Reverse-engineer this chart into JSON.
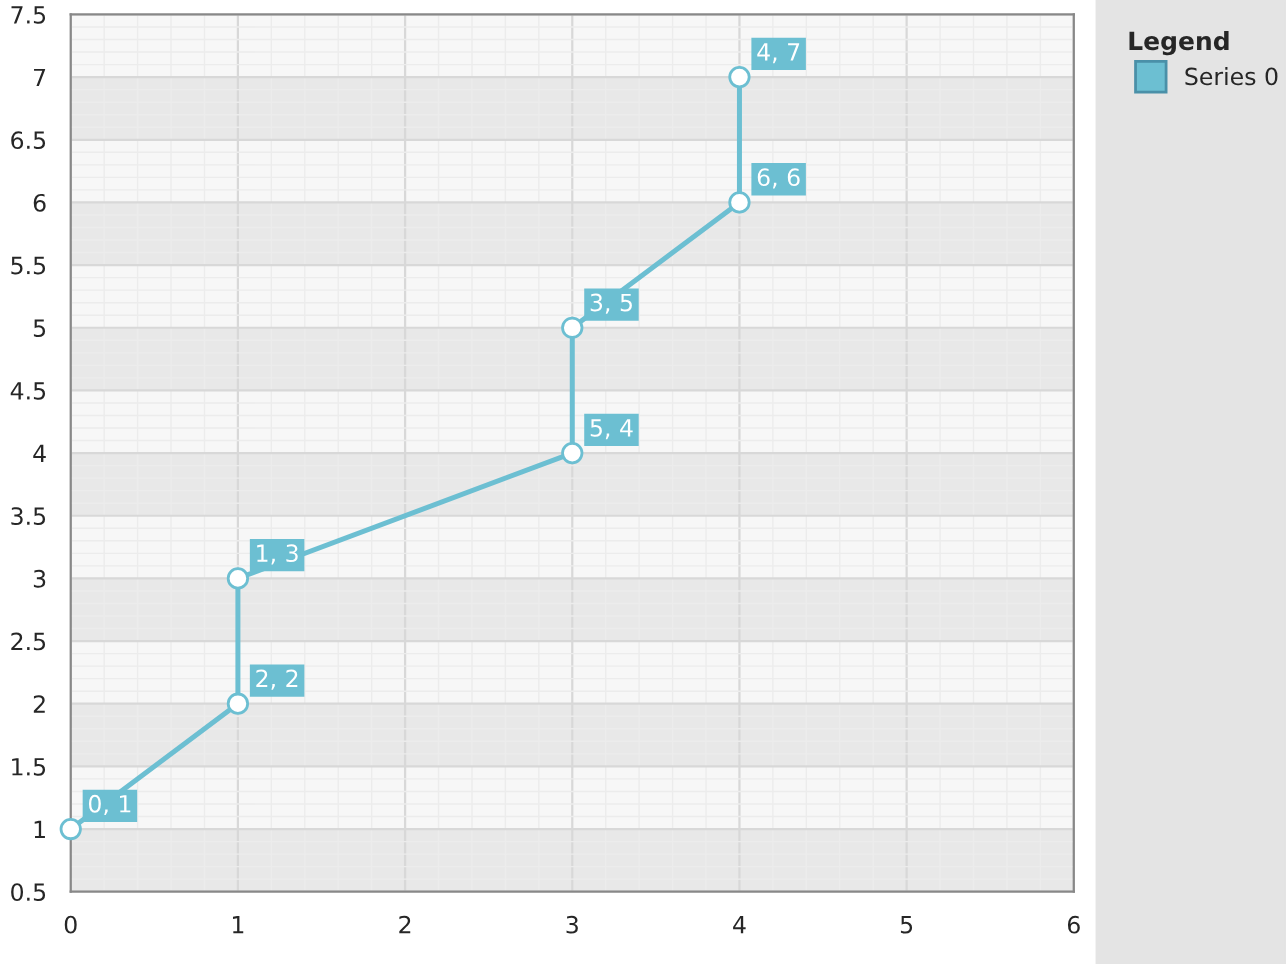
{
  "chart_data": {
    "type": "line",
    "legend_title": "Legend",
    "series": [
      {
        "name": "Series 0",
        "color": "#6cbfd2",
        "x": [
          0,
          1,
          1,
          3,
          3,
          4,
          4
        ],
        "values": [
          1,
          2,
          3,
          4,
          5,
          6,
          7
        ],
        "value_labels": [
          "0, 1",
          "2, 2",
          "1, 3",
          "5, 4",
          "3, 5",
          "6, 6",
          "4, 7"
        ]
      }
    ],
    "xlim": [
      0,
      6
    ],
    "xticks": [
      0,
      1,
      2,
      3,
      4,
      5,
      6
    ],
    "ylim": [
      0.5,
      7.5
    ],
    "yticks": [
      0.5,
      1,
      1.5,
      2,
      2.5,
      3,
      3.5,
      4,
      4.5,
      5,
      5.5,
      6,
      6.5,
      7,
      7.5
    ],
    "bands": [
      {
        "axis": "y",
        "from": 0.5,
        "to": 1,
        "color": "#e8e8e8"
      },
      {
        "axis": "y",
        "from": 1.5,
        "to": 2,
        "color": "#e8e8e8"
      },
      {
        "axis": "y",
        "from": 2.5,
        "to": 3,
        "color": "#e8e8e8"
      },
      {
        "axis": "y",
        "from": 3.5,
        "to": 4,
        "color": "#e8e8e8"
      },
      {
        "axis": "y",
        "from": 4.5,
        "to": 5,
        "color": "#e8e8e8"
      },
      {
        "axis": "y",
        "from": 5.5,
        "to": 6,
        "color": "#e8e8e8"
      },
      {
        "axis": "y",
        "from": 6.5,
        "to": 7,
        "color": "#e8e8e8"
      }
    ],
    "grid": true,
    "legend": "right",
    "marker": "circle",
    "line_style": "solid"
  }
}
